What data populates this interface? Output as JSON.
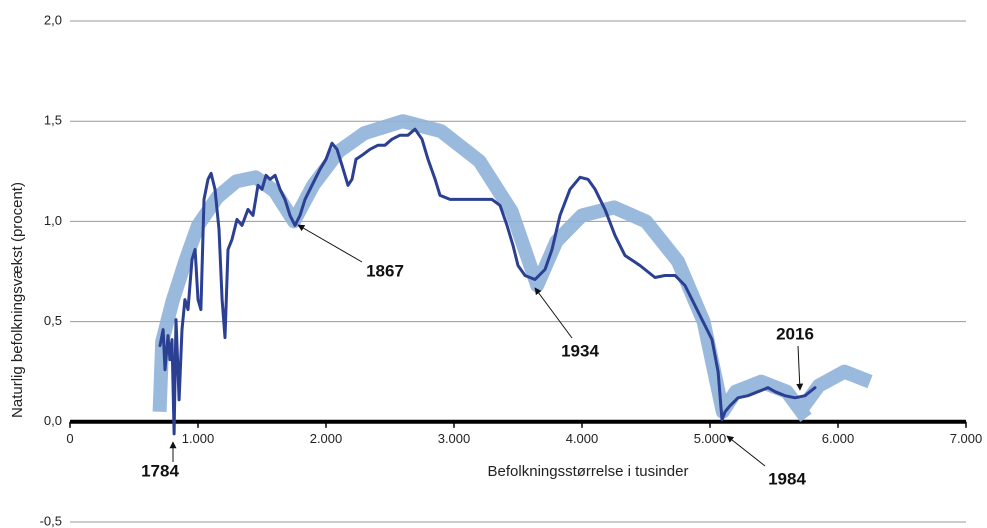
{
  "chart_data": {
    "type": "line",
    "y_label": "Naturlig befolkningsvækst (procent)",
    "x_label": "Befolkningsstørrelse i tusinder",
    "xlim": [
      0,
      7000
    ],
    "xticks": [
      0,
      {
        "value": 1000,
        "label": "1.000"
      },
      {
        "value": 2000,
        "label": "2.000"
      },
      {
        "value": 3000,
        "label": "3.000"
      },
      {
        "value": 4000,
        "label": "4.000"
      },
      {
        "value": 5000,
        "label": "5.000"
      },
      {
        "value": 6000,
        "label": "6.000"
      },
      {
        "value": 7000,
        "label": "7.000"
      }
    ],
    "ylim": [
      -0.5,
      2.0
    ],
    "yticks": [
      {
        "value": -0.5,
        "label": "-0,5"
      },
      {
        "value": 0,
        "label": "0,0"
      },
      {
        "value": 0.5,
        "label": "0,5"
      },
      {
        "value": 1.0,
        "label": "1,0"
      },
      {
        "value": 1.5,
        "label": "1,5"
      },
      {
        "value": 2.0,
        "label": "2,0"
      }
    ],
    "grid": true,
    "annotations": [
      "1784",
      "1867",
      "1934",
      "1984",
      "2016"
    ],
    "series": [
      {
        "color": "#8fb3d9",
        "width": 14,
        "x": [
          700,
          720,
          800,
          900,
          1000,
          1150,
          1300,
          1450,
          1600,
          1750,
          1900,
          2100,
          2300,
          2600,
          2900,
          3200,
          3450,
          3650,
          3800,
          4000,
          4250,
          4500,
          4750,
          4950,
          5100,
          5200,
          5400,
          5600,
          5750,
          null,
          5700,
          5850,
          6050,
          6250
        ],
        "values": [
          0.05,
          0.4,
          0.6,
          0.8,
          0.98,
          1.12,
          1.2,
          1.22,
          1.15,
          1.0,
          1.18,
          1.35,
          1.44,
          1.5,
          1.45,
          1.3,
          1.05,
          0.68,
          0.9,
          1.03,
          1.07,
          1.0,
          0.8,
          0.5,
          0.05,
          0.15,
          0.2,
          0.15,
          0.02,
          null,
          0.05,
          0.18,
          0.25,
          0.2
        ]
      },
      {
        "color": "#2b3f93",
        "width": 3,
        "x": [
          703,
          727,
          742,
          766,
          781,
          797,
          813,
          828,
          852,
          875,
          898,
          922,
          953,
          977,
          1000,
          1023,
          1047,
          1078,
          1102,
          1133,
          1164,
          1188,
          1211,
          1234,
          1266,
          1305,
          1344,
          1391,
          1430,
          1469,
          1500,
          1531,
          1563,
          1602,
          1641,
          1680,
          1719,
          1758,
          1797,
          1836,
          1891,
          1953,
          2000,
          2047,
          2086,
          2125,
          2172,
          2203,
          2234,
          2281,
          2344,
          2406,
          2461,
          2516,
          2578,
          2641,
          2695,
          2750,
          2797,
          2852,
          2891,
          2969,
          3047,
          3164,
          3297,
          3359,
          3414,
          3461,
          3500,
          3555,
          3633,
          3711,
          3766,
          3828,
          3906,
          3984,
          4047,
          4102,
          4180,
          4258,
          4336,
          4453,
          4570,
          4648,
          4727,
          4805,
          4883,
          4961,
          5016,
          5063,
          5094,
          5117,
          5156,
          5219,
          5297,
          5375,
          5453,
          5508,
          5586,
          5664,
          5742,
          5820
        ],
        "values": [
          0.38,
          0.46,
          0.26,
          0.43,
          0.31,
          0.41,
          -0.06,
          0.51,
          0.11,
          0.46,
          0.61,
          0.56,
          0.81,
          0.86,
          0.61,
          0.56,
          1.11,
          1.21,
          1.24,
          1.16,
          0.96,
          0.61,
          0.42,
          0.86,
          0.91,
          1.01,
          0.98,
          1.06,
          1.03,
          1.18,
          1.16,
          1.23,
          1.21,
          1.23,
          1.16,
          1.11,
          1.03,
          0.98,
          1.03,
          1.11,
          1.18,
          1.26,
          1.31,
          1.39,
          1.36,
          1.28,
          1.18,
          1.21,
          1.31,
          1.33,
          1.36,
          1.38,
          1.38,
          1.41,
          1.43,
          1.43,
          1.46,
          1.41,
          1.31,
          1.21,
          1.13,
          1.11,
          1.11,
          1.11,
          1.11,
          1.08,
          0.98,
          0.88,
          0.78,
          0.73,
          0.71,
          0.76,
          0.86,
          1.03,
          1.16,
          1.22,
          1.21,
          1.16,
          1.06,
          0.93,
          0.83,
          0.78,
          0.72,
          0.73,
          0.73,
          0.68,
          0.58,
          0.48,
          0.41,
          0.25,
          0.01,
          0.05,
          0.08,
          0.12,
          0.13,
          0.15,
          0.17,
          0.15,
          0.13,
          0.12,
          0.13,
          0.17
        ]
      }
    ]
  }
}
